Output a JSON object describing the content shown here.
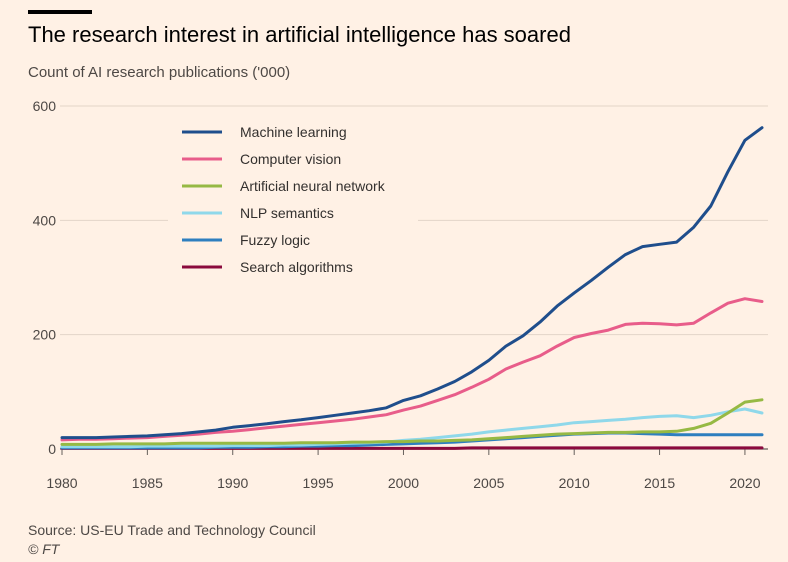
{
  "header": {
    "title": "The research interest in artificial intelligence has soared",
    "subtitle": "Count of AI research publications ('000)"
  },
  "footer": {
    "source": "Source: US-EU Trade and Technology Council",
    "credit": "© FT"
  },
  "chart_data": {
    "type": "line",
    "title": "The research interest in artificial intelligence has soared",
    "ylabel": "Count of AI research publications ('000)",
    "xlabel": "",
    "xlim": [
      1980,
      2021
    ],
    "ylim": [
      0,
      600
    ],
    "xticks": [
      1980,
      1985,
      1990,
      1995,
      2000,
      2005,
      2010,
      2015,
      2020
    ],
    "yticks": [
      0,
      200,
      400,
      600
    ],
    "grid": "horizontal",
    "legend": "top-left",
    "x": [
      1980,
      1981,
      1982,
      1983,
      1984,
      1985,
      1986,
      1987,
      1988,
      1989,
      1990,
      1991,
      1992,
      1993,
      1994,
      1995,
      1996,
      1997,
      1998,
      1999,
      2000,
      2001,
      2002,
      2003,
      2004,
      2005,
      2006,
      2007,
      2008,
      2009,
      2010,
      2011,
      2012,
      2013,
      2014,
      2015,
      2016,
      2017,
      2018,
      2019,
      2020,
      2021
    ],
    "series": [
      {
        "name": "Machine learning",
        "color": "#1f4e8c",
        "values": [
          20,
          20,
          20,
          21,
          22,
          23,
          25,
          27,
          30,
          33,
          38,
          41,
          44,
          48,
          51,
          55,
          59,
          63,
          67,
          72,
          85,
          93,
          105,
          118,
          135,
          155,
          180,
          198,
          222,
          250,
          273,
          295,
          318,
          340,
          354,
          358,
          362,
          388,
          425,
          485,
          540,
          562
        ]
      },
      {
        "name": "Computer vision",
        "color": "#e85d8a",
        "values": [
          16,
          17,
          17,
          18,
          19,
          20,
          22,
          24,
          26,
          29,
          31,
          34,
          37,
          40,
          43,
          46,
          49,
          52,
          56,
          60,
          68,
          75,
          85,
          95,
          108,
          122,
          140,
          152,
          163,
          180,
          195,
          202,
          208,
          218,
          220,
          219,
          217,
          220,
          238,
          255,
          263,
          258
        ]
      },
      {
        "name": "Artificial neural network",
        "color": "#96b944",
        "values": [
          8,
          8,
          8,
          9,
          9,
          9,
          9,
          10,
          10,
          10,
          10,
          10,
          10,
          10,
          11,
          11,
          11,
          12,
          12,
          13,
          13,
          14,
          14,
          15,
          16,
          18,
          20,
          22,
          24,
          26,
          27,
          28,
          29,
          29,
          30,
          30,
          31,
          36,
          45,
          63,
          82,
          86
        ]
      },
      {
        "name": "NLP semantics",
        "color": "#8fd8ea",
        "values": [
          4,
          4,
          4,
          4,
          4,
          5,
          5,
          5,
          5,
          5,
          6,
          6,
          6,
          7,
          7,
          8,
          9,
          10,
          11,
          12,
          15,
          17,
          20,
          23,
          26,
          30,
          33,
          36,
          39,
          42,
          46,
          48,
          50,
          52,
          55,
          57,
          58,
          55,
          59,
          65,
          70,
          63
        ]
      },
      {
        "name": "Fuzzy logic",
        "color": "#2e7fbf",
        "values": [
          2,
          2,
          2,
          2,
          2,
          2,
          2,
          2,
          2,
          3,
          3,
          3,
          4,
          4,
          5,
          5,
          6,
          6,
          7,
          8,
          9,
          10,
          11,
          12,
          14,
          16,
          18,
          20,
          22,
          24,
          26,
          27,
          28,
          28,
          27,
          26,
          25,
          25,
          25,
          25,
          25,
          25
        ]
      },
      {
        "name": "Search algorithms",
        "color": "#8b0a3d",
        "values": [
          1,
          1,
          1,
          1,
          1,
          1,
          1,
          1,
          1,
          1,
          1,
          1,
          1,
          1,
          1,
          1,
          1,
          1,
          1,
          1,
          1,
          1,
          1,
          1,
          2,
          2,
          2,
          2,
          2,
          2,
          2,
          2,
          2,
          2,
          2,
          2,
          2,
          2,
          2,
          2,
          2,
          2
        ]
      }
    ]
  }
}
